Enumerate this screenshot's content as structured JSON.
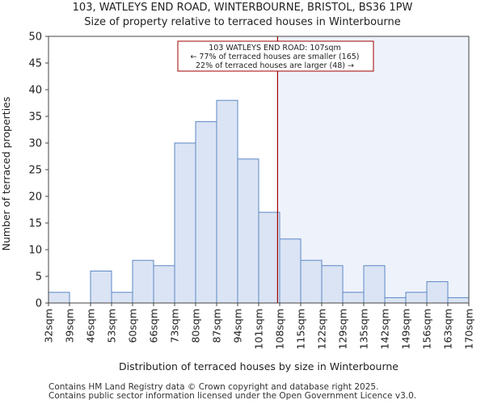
{
  "chart_data": {
    "type": "bar",
    "title": "103, WATLEYS END ROAD, WINTERBOURNE, BRISTOL, BS36 1PW",
    "subtitle": "Size of property relative to terraced houses in Winterbourne",
    "xlabel": "Distribution of terraced houses by size in Winterbourne",
    "ylabel": "Number of terraced properties",
    "tick_labels": [
      "32sqm",
      "39sqm",
      "46sqm",
      "53sqm",
      "60sqm",
      "66sqm",
      "73sqm",
      "80sqm",
      "87sqm",
      "94sqm",
      "101sqm",
      "108sqm",
      "115sqm",
      "122sqm",
      "129sqm",
      "135sqm",
      "142sqm",
      "149sqm",
      "156sqm",
      "163sqm",
      "170sqm"
    ],
    "values": [
      2,
      0,
      6,
      2,
      8,
      7,
      30,
      34,
      38,
      27,
      17,
      12,
      8,
      7,
      2,
      7,
      1,
      2,
      4,
      1
    ],
    "ylim": [
      0,
      50
    ],
    "yticks": [
      0,
      5,
      10,
      15,
      20,
      25,
      30,
      35,
      40,
      45,
      50
    ],
    "marker_bin_position": 10.9,
    "annotation": {
      "line1": "103 WATLEYS END ROAD: 107sqm",
      "line2": "← 77% of terraced houses are smaller (165)",
      "line3": "22% of terraced houses are larger (48) →"
    },
    "colors": {
      "bar_fill": "#dbe4f4",
      "bar_stroke": "#5b87c5",
      "marker": "#a00000",
      "highlight_region": "#eef2fb"
    }
  },
  "footer": {
    "line1": "Contains HM Land Registry data © Crown copyright and database right 2025.",
    "line2": "Contains public sector information licensed under the Open Government Licence v3.0."
  }
}
